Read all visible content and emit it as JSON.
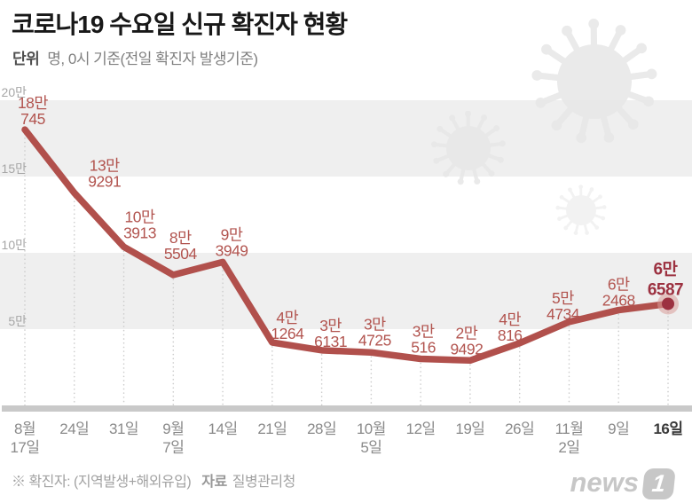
{
  "header": {
    "title": "코로나19 수요일 신규 확진자 현황",
    "subtitle_label": "단위",
    "subtitle_text": "명, 0시 기준(전일 확진자 발생기준)"
  },
  "footer": {
    "note": "※ 확진자: (지역발생+해외유입)",
    "source_label": "자료",
    "source_text": "질병관리청",
    "logo_text": "news",
    "logo_badge": "1"
  },
  "chart_data": {
    "type": "line",
    "title": "코로나19 수요일 신규 확진자 현황",
    "unit": "명",
    "x_tick_labels": [
      [
        "8월",
        "17일"
      ],
      [
        "24일"
      ],
      [
        "31일"
      ],
      [
        "9월",
        "7일"
      ],
      [
        "14일"
      ],
      [
        "21일"
      ],
      [
        "28일"
      ],
      [
        "10월",
        "5일"
      ],
      [
        "12일"
      ],
      [
        "19일"
      ],
      [
        "26일"
      ],
      [
        "11월",
        "2일"
      ],
      [
        "9일"
      ],
      [
        "16일"
      ]
    ],
    "values": [
      180745,
      139291,
      103913,
      85504,
      93949,
      41264,
      36131,
      34725,
      30516,
      29492,
      40816,
      54734,
      62468,
      66587
    ],
    "point_labels": [
      [
        "18만",
        "745"
      ],
      [
        "13만",
        "9291"
      ],
      [
        "10만",
        "3913"
      ],
      [
        "8만",
        "5504"
      ],
      [
        "9만",
        "3949"
      ],
      [
        "4만",
        "1264"
      ],
      [
        "3만",
        "6131"
      ],
      [
        "3만",
        "4725"
      ],
      [
        "3만",
        "516"
      ],
      [
        "2만",
        "9492"
      ],
      [
        "4만",
        "816"
      ],
      [
        "5만",
        "4734"
      ],
      [
        "6만",
        "2468"
      ],
      [
        "6만",
        "6587"
      ]
    ],
    "y_ticks": [
      {
        "label": "20만",
        "value": 200000
      },
      {
        "label": "15만",
        "value": 150000
      },
      {
        "label": "10만",
        "value": 100000
      },
      {
        "label": "5만",
        "value": 50000
      }
    ],
    "ylim": [
      0,
      200000
    ],
    "highlight_index": 13,
    "legend": "none",
    "grid": {
      "horizontal_bands": true,
      "vertical_dotted_below_points": true
    },
    "colors": {
      "line": "#b1504c",
      "point_labels": "#b2544f",
      "highlight": "#9c3140",
      "band": "#efefef",
      "axis_bar": "#c9c9c9",
      "grid_dots": "#cccccc",
      "y_tick_text": "#a6a6a6",
      "x_tick_text": "#8a8a8a",
      "x_tick_highlight": "#3a3a3a",
      "virus_icon": "#e8e8e8",
      "marker_halo": "#d99d99"
    }
  }
}
